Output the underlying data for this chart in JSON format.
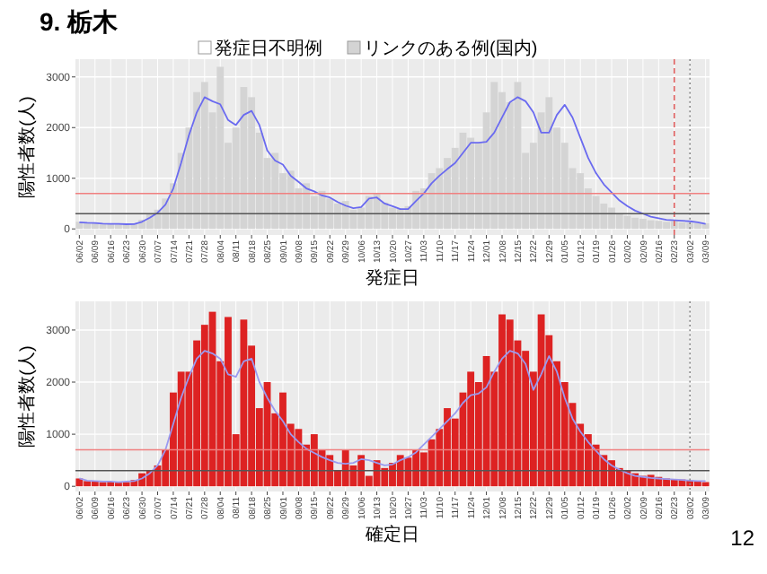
{
  "chart_data": [
    {
      "type": "bar",
      "title": "9. 栃木",
      "xlabel": "発症日",
      "ylabel": "陽性者数(人)",
      "legend": "top",
      "grid": true,
      "categories": [
        "06/02",
        null,
        "06/09",
        null,
        "06/16",
        null,
        "06/23",
        null,
        "06/30",
        null,
        "07/07",
        null,
        "07/14",
        null,
        "07/21",
        null,
        "07/28",
        null,
        "08/04",
        null,
        "08/11",
        null,
        "08/18",
        null,
        "08/25",
        null,
        "09/01",
        null,
        "09/08",
        null,
        "09/15",
        null,
        "09/22",
        null,
        "09/29",
        null,
        "10/06",
        null,
        "10/13",
        null,
        "10/20",
        null,
        "10/27",
        null,
        "11/03",
        null,
        "11/10",
        null,
        "11/17",
        null,
        "11/24",
        null,
        "12/01",
        null,
        "12/08",
        null,
        "12/15",
        null,
        "12/22",
        null,
        "12/29",
        null,
        "01/05",
        null,
        "01/12",
        null,
        "01/19",
        null,
        "01/26",
        null,
        "02/02",
        null,
        "02/09",
        null,
        "02/16",
        null,
        "02/23",
        null,
        "03/02",
        null,
        "03/09"
      ],
      "ylim": [
        -120,
        3350
      ],
      "yticks": [
        0,
        1000,
        2000,
        3000
      ],
      "series": [
        {
          "name": "発症日不明例",
          "color": "#ffffff",
          "values": [
            null,
            null,
            null,
            null,
            null,
            null,
            null,
            null,
            null,
            null,
            null,
            null,
            null,
            null,
            null,
            null,
            null,
            null,
            null,
            null,
            null,
            null,
            null,
            null,
            null,
            null,
            null,
            null,
            null,
            null,
            null,
            null,
            null,
            null,
            null,
            null,
            null,
            null,
            null,
            null,
            null,
            null,
            null,
            null,
            null,
            null,
            null,
            null,
            null,
            null,
            null,
            null,
            null,
            null,
            null,
            null,
            null,
            null,
            null,
            null,
            null,
            null,
            null,
            null,
            null,
            null,
            null,
            null,
            null,
            null,
            null,
            null,
            null,
            null,
            null,
            null,
            null,
            null,
            null,
            null,
            null
          ]
        },
        {
          "name": "リンクのある例(国内)",
          "color": "#d4d4d4",
          "values": [
            140,
            110,
            120,
            90,
            100,
            90,
            90,
            110,
            180,
            300,
            380,
            600,
            900,
            1500,
            2000,
            2700,
            2900,
            2300,
            3200,
            1700,
            2000,
            2800,
            2600,
            1900,
            1400,
            1500,
            1100,
            1150,
            800,
            900,
            650,
            750,
            600,
            500,
            550,
            380,
            420,
            650,
            700,
            520,
            420,
            400,
            450,
            750,
            800,
            1100,
            1200,
            1400,
            1600,
            1900,
            1800,
            1700,
            2300,
            2900,
            2700,
            2500,
            2900,
            1500,
            1700,
            2300,
            2600,
            2000,
            1700,
            1200,
            1100,
            800,
            650,
            500,
            420,
            300,
            260,
            220,
            200,
            170,
            160,
            140,
            150,
            130,
            120,
            115,
            110
          ]
        },
        {
          "type": "line",
          "color": "#6a6af0",
          "values": [
            130,
            120,
            115,
            105,
            100,
            100,
            92,
            95,
            140,
            220,
            320,
            480,
            800,
            1300,
            1850,
            2300,
            2600,
            2520,
            2460,
            2150,
            2050,
            2250,
            2330,
            2050,
            1550,
            1350,
            1270,
            1050,
            930,
            800,
            740,
            660,
            620,
            530,
            460,
            410,
            430,
            600,
            620,
            500,
            450,
            390,
            390,
            550,
            700,
            900,
            1050,
            1180,
            1300,
            1500,
            1700,
            1700,
            1720,
            1900,
            2200,
            2500,
            2600,
            2520,
            2300,
            1900,
            1900,
            2250,
            2450,
            2200,
            1800,
            1400,
            1100,
            880,
            720,
            560,
            450,
            360,
            300,
            240,
            210,
            180,
            170,
            160,
            150,
            130,
            100
          ]
        }
      ],
      "ref_lines": [
        {
          "axis": "x",
          "value": "02/23",
          "color": "#e06060",
          "line_style": "dashed"
        },
        {
          "axis": "x",
          "value": "03/02",
          "color": "#888888",
          "line_style": "dotted"
        },
        {
          "axis": "y",
          "value": 700,
          "color": "#f08080"
        },
        {
          "axis": "y",
          "value": 300,
          "color": "#555555"
        }
      ]
    },
    {
      "type": "bar",
      "xlabel": "確定日",
      "ylabel": "陽性者数(人)",
      "grid": true,
      "annotations": [
        "12"
      ],
      "categories": [
        "06/02",
        null,
        "06/09",
        null,
        "06/16",
        null,
        "06/23",
        null,
        "06/30",
        null,
        "07/07",
        null,
        "07/14",
        null,
        "07/21",
        null,
        "07/28",
        null,
        "08/04",
        null,
        "08/11",
        null,
        "08/18",
        null,
        "08/25",
        null,
        "09/01",
        null,
        "09/08",
        null,
        "09/15",
        null,
        "09/22",
        null,
        "09/29",
        null,
        "10/06",
        null,
        "10/13",
        null,
        "10/20",
        null,
        "10/27",
        null,
        "11/03",
        null,
        "11/10",
        null,
        "11/17",
        null,
        "11/24",
        null,
        "12/01",
        null,
        "12/08",
        null,
        "12/15",
        null,
        "12/22",
        null,
        "12/29",
        null,
        "01/05",
        null,
        "01/12",
        null,
        "01/19",
        null,
        "01/26",
        null,
        "02/02",
        null,
        "02/09",
        null,
        "02/16",
        null,
        "02/23",
        null,
        "03/02",
        null,
        "03/09"
      ],
      "ylim": [
        -100,
        3550
      ],
      "yticks": [
        0,
        1000,
        2000,
        3000
      ],
      "series": [
        {
          "color": "#dd2222",
          "values": [
            150,
            100,
            90,
            80,
            90,
            70,
            80,
            120,
            250,
            300,
            400,
            700,
            1800,
            2200,
            2200,
            2800,
            3100,
            3350,
            2400,
            3250,
            1000,
            3200,
            2700,
            1500,
            2000,
            1400,
            1800,
            1200,
            1100,
            800,
            1000,
            700,
            600,
            300,
            700,
            400,
            600,
            200,
            500,
            350,
            450,
            600,
            550,
            700,
            650,
            900,
            1100,
            1500,
            1300,
            1800,
            2200,
            2000,
            2500,
            2200,
            3300,
            3200,
            2800,
            2600,
            2200,
            3300,
            2900,
            2400,
            2000,
            1600,
            1200,
            1000,
            800,
            600,
            500,
            350,
            300,
            250,
            200,
            220,
            180,
            150,
            140,
            130,
            110,
            90,
            80
          ]
        },
        {
          "type": "line",
          "color": "#9a9af0",
          "values": [
            150,
            110,
            100,
            90,
            90,
            80,
            90,
            100,
            150,
            250,
            400,
            700,
            1200,
            1700,
            2100,
            2450,
            2600,
            2550,
            2450,
            2150,
            2100,
            2400,
            2450,
            2000,
            1700,
            1450,
            1250,
            1000,
            850,
            720,
            640,
            560,
            500,
            450,
            430,
            450,
            520,
            500,
            450,
            400,
            420,
            500,
            560,
            650,
            800,
            950,
            1100,
            1250,
            1400,
            1600,
            1750,
            1780,
            1900,
            2200,
            2450,
            2600,
            2550,
            2350,
            1850,
            2150,
            2500,
            2200,
            1700,
            1300,
            1050,
            850,
            680,
            520,
            400,
            320,
            250,
            200,
            180,
            160,
            150,
            140,
            130,
            120,
            110,
            100,
            100
          ]
        }
      ],
      "ref_lines": [
        {
          "axis": "x",
          "value": "03/02",
          "color": "#888888",
          "line_style": "dotted"
        },
        {
          "axis": "y",
          "value": 700,
          "color": "#f08080"
        },
        {
          "axis": "y",
          "value": 300,
          "color": "#555555"
        }
      ]
    }
  ]
}
